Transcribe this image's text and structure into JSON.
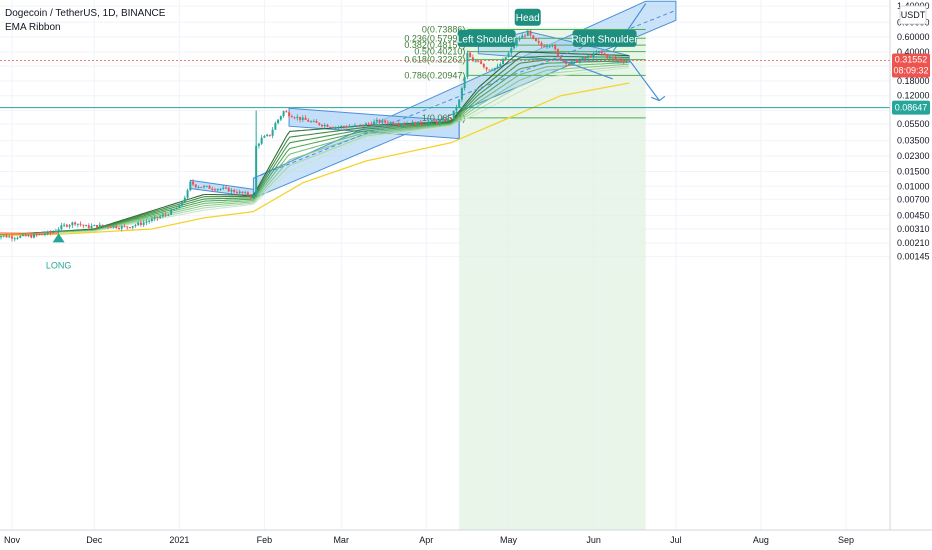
{
  "header": {
    "title": "Dogecoin / TetherUS, 1D, BINANCE",
    "indicator": "EMA Ribbon"
  },
  "chart_data": {
    "type": "candlestick",
    "symbol": "Dogecoin / TetherUS",
    "interval": "1D",
    "exchange": "BINANCE",
    "y_scale": "log",
    "y_currency": "USDT",
    "ylim": [
      0.0013,
      1.5
    ],
    "x_ticks": [
      "Nov",
      "Dec",
      "2021",
      "Feb",
      "Mar",
      "Apr",
      "May",
      "Jun",
      "Jul",
      "Aug",
      "Sep"
    ],
    "y_ticks": [
      "1.40000",
      "0.90000",
      "0.60000",
      "0.40000",
      "0.27000",
      "0.18000",
      "0.12000",
      "0.08000",
      "0.05500",
      "0.03500",
      "0.02300",
      "0.01500",
      "0.01000",
      "0.00700",
      "0.00450",
      "0.00310",
      "0.00210",
      "0.00145"
    ],
    "current_price": "0.31552",
    "countdown": "08:09:32",
    "horizontal_level": "0.08647",
    "fibonacci": [
      {
        "label": "0(0.73886)",
        "value": 0.73886
      },
      {
        "label": "0.236(0.57997)",
        "value": 0.57997
      },
      {
        "label": "0.382(0.48157)",
        "value": 0.48157
      },
      {
        "label": "0.5(0.40210)",
        "value": 0.4021
      },
      {
        "label": "0.618(0.32262)",
        "value": 0.32262
      },
      {
        "label": "0.786(0.20947)",
        "value": 0.20947
      },
      {
        "label": "1(0.06534)",
        "value": 0.06534
      }
    ],
    "annotations": [
      "Left Shoulder",
      "Head",
      "Right Shoulder",
      "LONG"
    ],
    "price_path": [
      [
        "2020-10-25",
        0.00262
      ],
      [
        "2020-11-01",
        0.0025
      ],
      [
        "2020-11-08",
        0.00255
      ],
      [
        "2020-11-15",
        0.0028
      ],
      [
        "2020-11-20",
        0.0034
      ],
      [
        "2020-11-24",
        0.0037
      ],
      [
        "2020-11-28",
        0.0033
      ],
      [
        "2020-12-05",
        0.0034
      ],
      [
        "2020-12-12",
        0.00325
      ],
      [
        "2020-12-18",
        0.0036
      ],
      [
        "2020-12-22",
        0.004
      ],
      [
        "2020-12-27",
        0.0046
      ],
      [
        "2021-01-01",
        0.0057
      ],
      [
        "2021-01-04",
        0.0086
      ],
      [
        "2021-01-05",
        0.011
      ],
      [
        "2021-01-07",
        0.0102
      ],
      [
        "2021-01-12",
        0.0096
      ],
      [
        "2021-01-18",
        0.0092
      ],
      [
        "2021-01-25",
        0.0081
      ],
      [
        "2021-01-28",
        0.0076
      ],
      [
        "2021-01-29",
        0.03
      ],
      [
        "2021-01-31",
        0.037
      ],
      [
        "2021-02-03",
        0.041
      ],
      [
        "2021-02-05",
        0.056
      ],
      [
        "2021-02-08",
        0.078
      ],
      [
        "2021-02-10",
        0.072
      ],
      [
        "2021-02-14",
        0.064
      ],
      [
        "2021-02-20",
        0.056
      ],
      [
        "2021-02-27",
        0.051
      ],
      [
        "2021-03-07",
        0.052
      ],
      [
        "2021-03-14",
        0.059
      ],
      [
        "2021-03-21",
        0.057
      ],
      [
        "2021-03-28",
        0.056
      ],
      [
        "2021-04-05",
        0.058
      ],
      [
        "2021-04-10",
        0.065
      ],
      [
        "2021-04-13",
        0.105
      ],
      [
        "2021-04-15",
        0.2
      ],
      [
        "2021-04-16",
        0.38
      ],
      [
        "2021-04-18",
        0.3
      ],
      [
        "2021-04-20",
        0.32
      ],
      [
        "2021-04-23",
        0.25
      ],
      [
        "2021-04-27",
        0.26
      ],
      [
        "2021-05-01",
        0.38
      ],
      [
        "2021-05-04",
        0.55
      ],
      [
        "2021-05-08",
        0.68
      ],
      [
        "2021-05-10",
        0.55
      ],
      [
        "2021-05-13",
        0.47
      ],
      [
        "2021-05-17",
        0.5
      ],
      [
        "2021-05-19",
        0.34
      ],
      [
        "2021-05-23",
        0.29
      ],
      [
        "2021-05-27",
        0.32
      ],
      [
        "2021-06-01",
        0.37
      ],
      [
        "2021-06-03",
        0.4
      ],
      [
        "2021-06-06",
        0.35
      ],
      [
        "2021-06-10",
        0.32
      ],
      [
        "2021-06-14",
        0.31552
      ]
    ],
    "ema_slow": [
      [
        "2020-10-25",
        0.00255
      ],
      [
        "2020-11-20",
        0.0027
      ],
      [
        "2020-12-22",
        0.0031
      ],
      [
        "2021-01-10",
        0.0042
      ],
      [
        "2021-01-28",
        0.005
      ],
      [
        "2021-02-15",
        0.011
      ],
      [
        "2021-03-10",
        0.02
      ],
      [
        "2021-04-10",
        0.033
      ],
      [
        "2021-05-01",
        0.065
      ],
      [
        "2021-05-20",
        0.12
      ],
      [
        "2021-06-14",
        0.17
      ]
    ],
    "ema_ribbon_fast": [
      [
        "2020-10-25",
        0.0026
      ],
      [
        "2020-12-01",
        0.0031
      ],
      [
        "2021-01-10",
        0.008
      ],
      [
        "2021-01-28",
        0.0078
      ],
      [
        "2021-02-10",
        0.045
      ],
      [
        "2021-03-10",
        0.053
      ],
      [
        "2021-04-10",
        0.059
      ],
      [
        "2021-04-20",
        0.15
      ],
      [
        "2021-05-05",
        0.4
      ],
      [
        "2021-06-14",
        0.36
      ]
    ],
    "ema_ribbon_slow": [
      [
        "2020-10-25",
        0.00255
      ],
      [
        "2020-12-01",
        0.0029
      ],
      [
        "2021-01-10",
        0.0052
      ],
      [
        "2021-01-28",
        0.0061
      ],
      [
        "2021-02-10",
        0.015
      ],
      [
        "2021-03-10",
        0.038
      ],
      [
        "2021-04-10",
        0.052
      ],
      [
        "2021-04-25",
        0.09
      ],
      [
        "2021-05-15",
        0.2
      ],
      [
        "2021-06-14",
        0.26
      ]
    ]
  }
}
